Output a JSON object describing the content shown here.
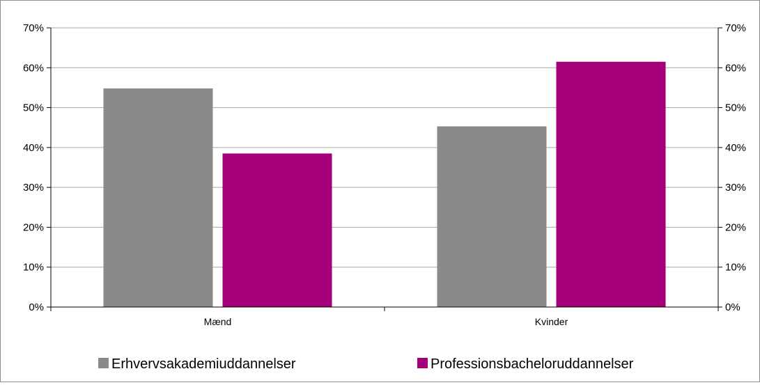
{
  "chart_data": {
    "type": "bar",
    "title": "",
    "xlabel": "",
    "ylabel": "",
    "categories": [
      "Mænd",
      "Kvinder"
    ],
    "series": [
      {
        "name": "Erhvervsakademiuddannelser",
        "values": [
          54.8,
          45.3
        ],
        "color": "#8a8a8a"
      },
      {
        "name": "Professionsbacheloruddannelser",
        "values": [
          38.5,
          61.5
        ],
        "color": "#a5007a"
      }
    ],
    "ylim": [
      0,
      70
    ],
    "y_ticks": [
      0,
      10,
      20,
      30,
      40,
      50,
      60,
      70
    ],
    "y_tick_labels": [
      "0%",
      "10%",
      "20%",
      "30%",
      "40%",
      "50%",
      "60%",
      "70%"
    ],
    "secondary_y_axis": true,
    "grid": true,
    "legend_position": "bottom"
  }
}
